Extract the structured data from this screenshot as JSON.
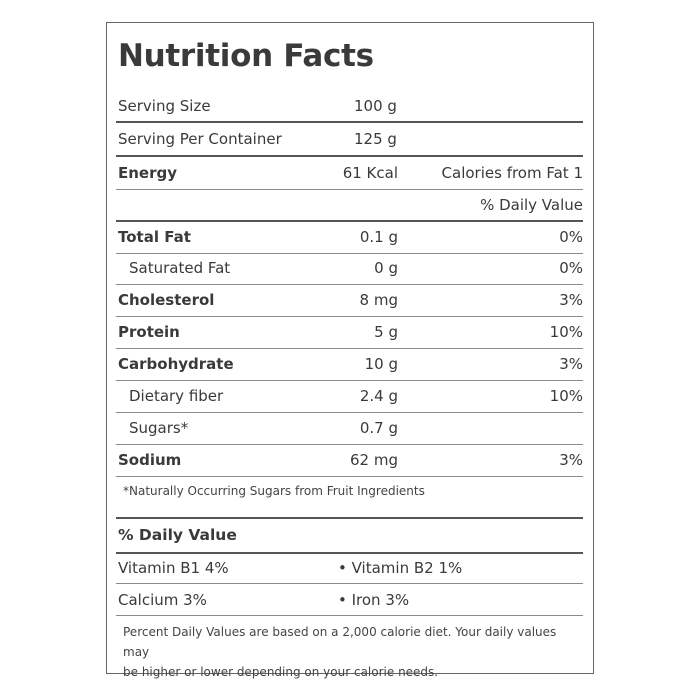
{
  "title": "Nutrition Facts",
  "serving": [
    {
      "label": "Serving Size",
      "amount": "100 g"
    },
    {
      "label": "Serving Per Container",
      "amount": "125 g"
    }
  ],
  "energy": {
    "label": "Energy",
    "amount": "61 Kcal",
    "fat_calories": "Calories from Fat 1"
  },
  "daily_value_header": "% Daily Value",
  "nutrients": [
    {
      "label": "Total Fat",
      "amount": "0.1 g",
      "dv": "0%"
    },
    {
      "label": "Saturated Fat",
      "amount": "0 g",
      "dv": "0%"
    },
    {
      "label": "Cholesterol",
      "amount": "8 mg",
      "dv": "3%"
    },
    {
      "label": "Protein",
      "amount": "5 g",
      "dv": "10%"
    },
    {
      "label": "Carbohydrate",
      "amount": "10 g",
      "dv": "3%"
    },
    {
      "label": "Dietary fiber",
      "amount": "2.4 g",
      "dv": "10%"
    },
    {
      "label": "Sugars*",
      "amount": "0.7 g",
      "dv": ""
    },
    {
      "label": "Sodium",
      "amount": "62 mg",
      "dv": "3%"
    }
  ],
  "sugar_note": "*Naturally Occurring Sugars from Fruit Ingredients",
  "vitamins_header": "% Daily Value",
  "vitamins": [
    {
      "left": "Vitamin B1 4%",
      "right": "• Vitamin B2 1%"
    },
    {
      "left": "Calcium 3%",
      "right": "• Iron 3%"
    }
  ],
  "footer": {
    "line1": "Percent Daily Values are based on a 2,000 calorie diet. Your daily values may",
    "line2": "be higher or lower depending on your calorie needs."
  }
}
